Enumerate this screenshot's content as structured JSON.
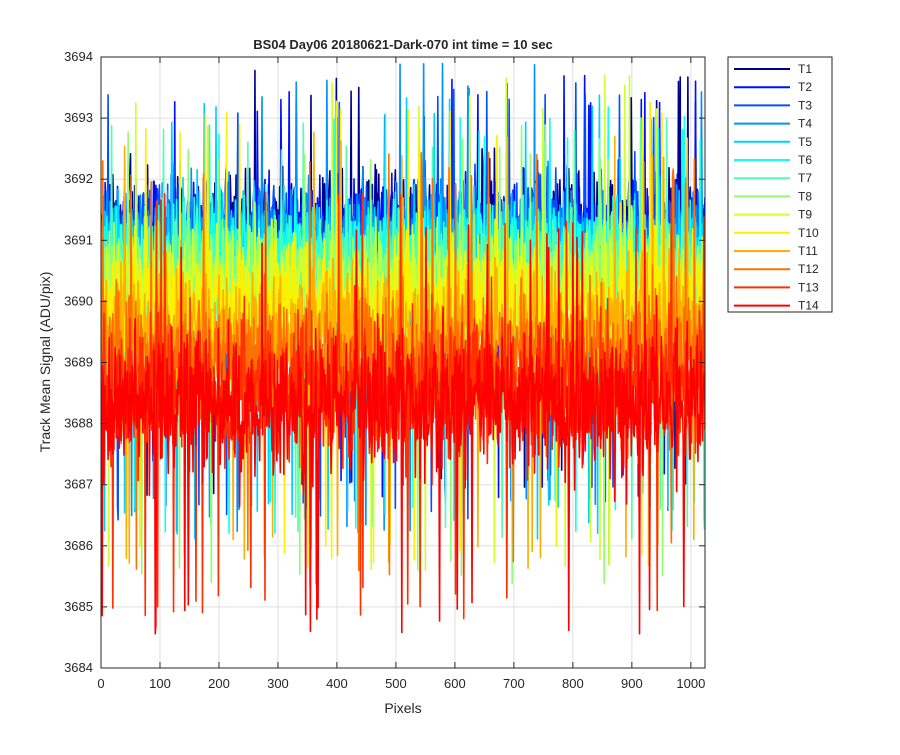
{
  "chart_data": {
    "type": "line",
    "title": "BS04 Day06 20180621-Dark-070 int time = 10 sec",
    "xlabel": "Pixels",
    "ylabel": "Track Mean Signal (ADU/pix)",
    "xlim": [
      0,
      1024
    ],
    "ylim": [
      3684,
      3694
    ],
    "xticks": [
      0,
      100,
      200,
      300,
      400,
      500,
      600,
      700,
      800,
      900,
      1000
    ],
    "yticks": [
      3684,
      3685,
      3686,
      3687,
      3688,
      3689,
      3690,
      3691,
      3692,
      3693,
      3694
    ],
    "grid": true,
    "legend_position": "outside-top-right",
    "x": {
      "start": 1,
      "end": 1024,
      "step": 1
    },
    "series": [
      {
        "name": "T1",
        "color": "#00008f",
        "mean": 3691.2,
        "spread": 0.65,
        "min": 3686.8,
        "max": 3693.8
      },
      {
        "name": "T2",
        "color": "#0010ff",
        "mean": 3691.1,
        "spread": 0.65,
        "min": 3686.6,
        "max": 3693.7
      },
      {
        "name": "T3",
        "color": "#0050ff",
        "mean": 3691.0,
        "spread": 0.65,
        "min": 3686.4,
        "max": 3693.6
      },
      {
        "name": "T4",
        "color": "#0090ff",
        "mean": 3690.9,
        "spread": 0.65,
        "min": 3686.2,
        "max": 3693.9
      },
      {
        "name": "T5",
        "color": "#00d0ff",
        "mean": 3690.8,
        "spread": 0.65,
        "min": 3686.1,
        "max": 3693.4
      },
      {
        "name": "T6",
        "color": "#10ffef",
        "mean": 3690.7,
        "spread": 0.65,
        "min": 3686.2,
        "max": 3693.2
      },
      {
        "name": "T7",
        "color": "#50ffaf",
        "mean": 3690.5,
        "spread": 0.65,
        "min": 3686.0,
        "max": 3693.0
      },
      {
        "name": "T8",
        "color": "#90ff6f",
        "mean": 3690.3,
        "spread": 0.65,
        "min": 3685.3,
        "max": 3692.9
      },
      {
        "name": "T9",
        "color": "#cfff30",
        "mean": 3690.2,
        "spread": 0.65,
        "min": 3685.6,
        "max": 3693.7
      },
      {
        "name": "T10",
        "color": "#ffef00",
        "mean": 3689.9,
        "spread": 0.7,
        "min": 3685.5,
        "max": 3693.3
      },
      {
        "name": "T11",
        "color": "#ffaf00",
        "mean": 3689.5,
        "spread": 0.75,
        "min": 3685.6,
        "max": 3692.8
      },
      {
        "name": "T12",
        "color": "#ff7000",
        "mean": 3689.0,
        "spread": 0.8,
        "min": 3685.5,
        "max": 3692.5
      },
      {
        "name": "T13",
        "color": "#ff3000",
        "mean": 3688.6,
        "spread": 0.8,
        "min": 3684.8,
        "max": 3691.8
      },
      {
        "name": "T14",
        "color": "#ff0000",
        "mean": 3688.3,
        "spread": 0.8,
        "min": 3684.5,
        "max": 3691.4
      }
    ]
  }
}
